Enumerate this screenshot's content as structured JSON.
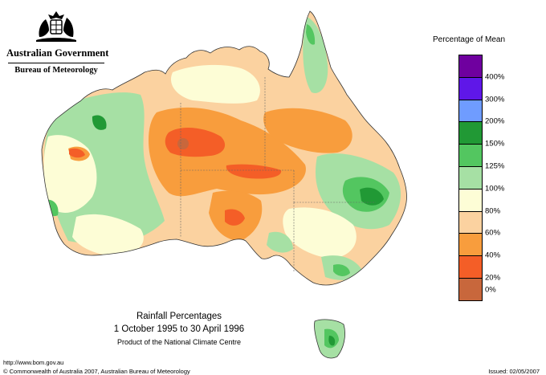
{
  "header": {
    "government": "Australian Government",
    "bureau": "Bureau of Meteorology",
    "crest_icon": "commonwealth-coat-of-arms"
  },
  "legend": {
    "title": "Percentage of Mean",
    "classes": [
      {
        "label": "400%",
        "color": "#6f009f"
      },
      {
        "label": "300%",
        "color": "#5f17e8"
      },
      {
        "label": "200%",
        "color": "#6f9cff"
      },
      {
        "label": "150%",
        "color": "#219935"
      },
      {
        "label": "125%",
        "color": "#53c660"
      },
      {
        "label": "100%",
        "color": "#a6e0a4"
      },
      {
        "label": "80%",
        "color": "#fdfdd6"
      },
      {
        "label": "60%",
        "color": "#fbd2a0"
      },
      {
        "label": "40%",
        "color": "#f89d3d"
      },
      {
        "label": "20%",
        "color": "#f45e27"
      },
      {
        "label": "0%",
        "color": "#c8673c"
      }
    ]
  },
  "map_title": {
    "title": "Rainfall Percentages",
    "period": "1 October 1995 to 30 April 1996",
    "credit": "Product of the National Climate Centre"
  },
  "footer": {
    "url": "http://www.bom.gov.au",
    "copyright": "© Commonwealth of Australia 2007, Australian Bureau of Meteorology",
    "issued": "Issued: 02/05/2007"
  }
}
